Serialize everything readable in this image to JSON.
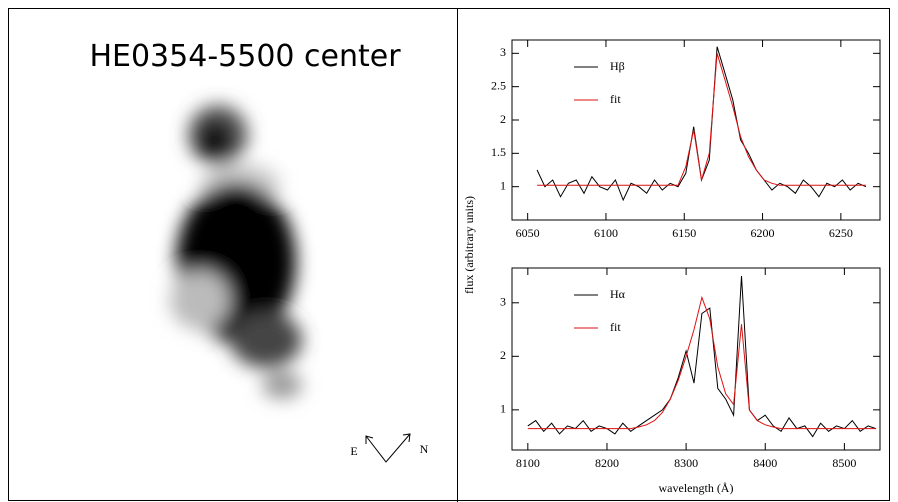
{
  "image_panel": {
    "title": "HE0354-5500 center",
    "compass": {
      "east": "E",
      "north": "N"
    }
  },
  "chart_data": [
    {
      "type": "line",
      "ylabel": "flux (arbitrary units)",
      "xlim": [
        6040,
        6275
      ],
      "ylim": [
        0.5,
        3.2
      ],
      "xticks": [
        6050,
        6100,
        6150,
        6200,
        6250
      ],
      "yticks": [
        1,
        1.5,
        2,
        2.5,
        3
      ],
      "legend": "upper left",
      "x": [
        6056,
        6061,
        6066,
        6071,
        6076,
        6081,
        6086,
        6091,
        6096,
        6101,
        6106,
        6111,
        6116,
        6121,
        6126,
        6131,
        6136,
        6141,
        6146,
        6151,
        6156,
        6161,
        6166,
        6171,
        6176,
        6181,
        6186,
        6191,
        6196,
        6201,
        6206,
        6211,
        6216,
        6221,
        6226,
        6231,
        6236,
        6241,
        6246,
        6251,
        6256,
        6261,
        6266
      ],
      "series": [
        {
          "name": "Hβ",
          "color": "#000000",
          "values": [
            1.25,
            1.0,
            1.1,
            0.85,
            1.05,
            1.1,
            0.9,
            1.15,
            1.0,
            0.95,
            1.1,
            0.8,
            1.05,
            1.0,
            0.9,
            1.1,
            0.95,
            1.05,
            1.0,
            1.2,
            1.9,
            1.1,
            1.4,
            3.1,
            2.7,
            2.3,
            1.7,
            1.5,
            1.25,
            1.1,
            0.95,
            1.05,
            1.0,
            0.9,
            1.1,
            1.0,
            0.85,
            1.05,
            1.0,
            1.1,
            0.95,
            1.05,
            1.0
          ]
        },
        {
          "name": "fit",
          "color": "#dd1111",
          "values": [
            1.02,
            1.02,
            1.02,
            1.02,
            1.02,
            1.02,
            1.02,
            1.02,
            1.02,
            1.02,
            1.02,
            1.02,
            1.02,
            1.02,
            1.02,
            1.02,
            1.02,
            1.02,
            1.02,
            1.3,
            1.85,
            1.1,
            1.5,
            3.0,
            2.6,
            2.2,
            1.75,
            1.45,
            1.25,
            1.1,
            1.05,
            1.02,
            1.02,
            1.02,
            1.02,
            1.02,
            1.02,
            1.02,
            1.02,
            1.02,
            1.02,
            1.02,
            1.02
          ]
        }
      ]
    },
    {
      "type": "line",
      "xlabel": "wavelength (Å)",
      "xlim": [
        8080,
        8545
      ],
      "ylim": [
        0.25,
        3.65
      ],
      "xticks": [
        8100,
        8200,
        8300,
        8400,
        8500
      ],
      "yticks": [
        1,
        2,
        3
      ],
      "legend": "upper left",
      "x": [
        8100,
        8110,
        8120,
        8130,
        8140,
        8150,
        8160,
        8170,
        8180,
        8190,
        8200,
        8210,
        8220,
        8230,
        8240,
        8250,
        8260,
        8270,
        8280,
        8290,
        8300,
        8310,
        8320,
        8330,
        8340,
        8350,
        8360,
        8370,
        8380,
        8390,
        8400,
        8410,
        8420,
        8430,
        8440,
        8450,
        8460,
        8470,
        8480,
        8490,
        8500,
        8510,
        8520,
        8530,
        8540
      ],
      "series": [
        {
          "name": "Hα",
          "color": "#000000",
          "values": [
            0.7,
            0.8,
            0.6,
            0.75,
            0.55,
            0.7,
            0.65,
            0.8,
            0.6,
            0.7,
            0.65,
            0.55,
            0.75,
            0.6,
            0.7,
            0.8,
            0.9,
            1.0,
            1.2,
            1.6,
            2.1,
            1.5,
            2.8,
            2.9,
            1.4,
            1.2,
            0.9,
            3.5,
            1.0,
            0.8,
            0.9,
            0.7,
            0.6,
            0.85,
            0.65,
            0.7,
            0.5,
            0.75,
            0.6,
            0.7,
            0.65,
            0.8,
            0.6,
            0.7,
            0.65
          ]
        },
        {
          "name": "fit",
          "color": "#dd1111",
          "values": [
            0.65,
            0.65,
            0.65,
            0.65,
            0.65,
            0.65,
            0.65,
            0.65,
            0.65,
            0.65,
            0.65,
            0.65,
            0.65,
            0.65,
            0.68,
            0.72,
            0.8,
            0.95,
            1.2,
            1.55,
            2.0,
            2.5,
            3.1,
            2.7,
            1.8,
            1.3,
            1.1,
            2.6,
            1.0,
            0.8,
            0.72,
            0.68,
            0.65,
            0.65,
            0.65,
            0.65,
            0.65,
            0.65,
            0.65,
            0.65,
            0.65,
            0.65,
            0.65,
            0.65,
            0.65
          ]
        }
      ]
    }
  ]
}
